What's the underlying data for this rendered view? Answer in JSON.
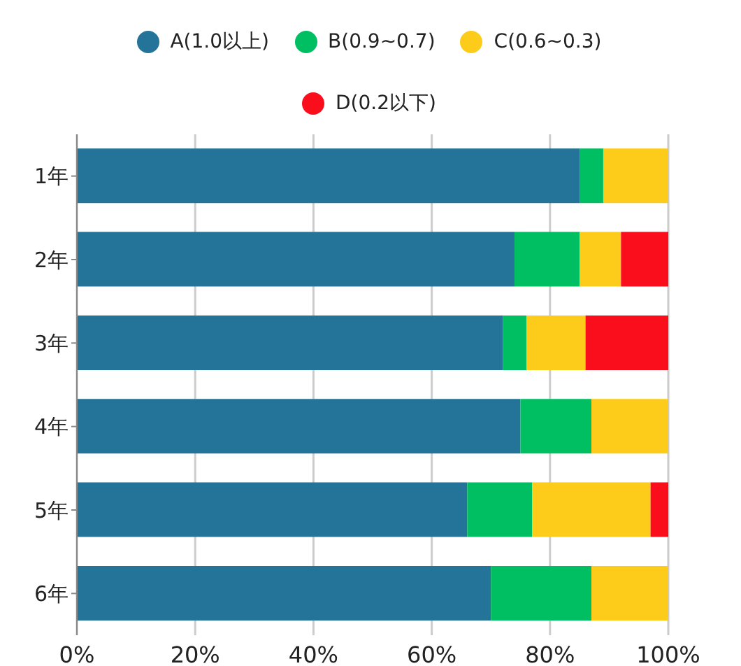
{
  "chart_data": {
    "type": "bar",
    "orientation": "horizontal",
    "stacked": true,
    "categories": [
      "1年",
      "2年",
      "3年",
      "4年",
      "5年",
      "6年"
    ],
    "series": [
      {
        "name": "A(1.0以上)",
        "color": "#247399",
        "values": [
          85,
          74,
          72,
          75,
          66,
          70
        ]
      },
      {
        "name": "B(0.9~0.7)",
        "color": "#00be62",
        "values": [
          4,
          11,
          4,
          12,
          11,
          17
        ]
      },
      {
        "name": "C(0.6~0.3)",
        "color": "#fdcc1b",
        "values": [
          11,
          7,
          10,
          13,
          20,
          13
        ]
      },
      {
        "name": "D(0.2以下)",
        "color": "#fa0e1c",
        "values": [
          0,
          8,
          14,
          0,
          3,
          0
        ]
      }
    ],
    "xlim": [
      0,
      100
    ],
    "xticks": [
      {
        "value": 0,
        "label": "0%"
      },
      {
        "value": 20,
        "label": "20%"
      },
      {
        "value": 40,
        "label": "40%"
      },
      {
        "value": 60,
        "label": "60%"
      },
      {
        "value": 80,
        "label": "80%"
      },
      {
        "value": 100,
        "label": "100%"
      }
    ],
    "grid": "x",
    "legend": "top"
  }
}
